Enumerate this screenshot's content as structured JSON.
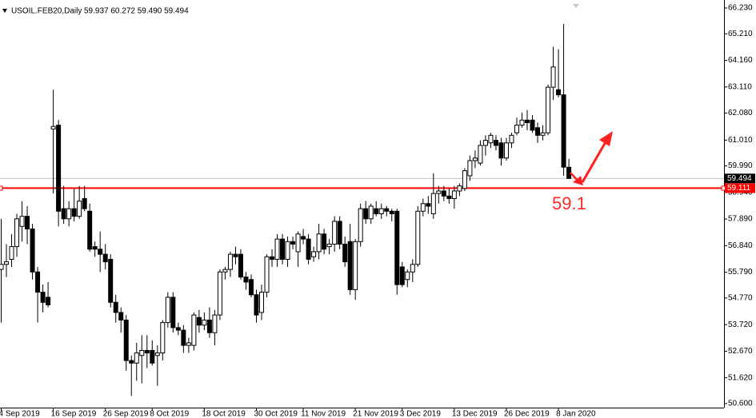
{
  "chart_data": {
    "type": "candlestick",
    "title": "USOIL.FEB20,Daily",
    "header_values": "59.937 60.272 59.490 59.494",
    "annotation": "59.1",
    "bull_color": "#ffffff",
    "bear_color": "#000000",
    "outline_color": "#000000",
    "ylim": [
      50.44,
      66.546
    ],
    "yticks": [
      {
        "value": 66.23,
        "label": "66.230"
      },
      {
        "value": 65.21,
        "label": "65.210"
      },
      {
        "value": 64.16,
        "label": "64.160"
      },
      {
        "value": 63.11,
        "label": "63.110"
      },
      {
        "value": 62.08,
        "label": "62.080"
      },
      {
        "value": 61.01,
        "label": "61.010"
      },
      {
        "value": 59.99,
        "label": "59.990"
      },
      {
        "value": 58.94,
        "label": "58.940"
      },
      {
        "value": 57.89,
        "label": "57.890"
      },
      {
        "value": 56.84,
        "label": "56.840"
      },
      {
        "value": 55.79,
        "label": "55.790"
      },
      {
        "value": 54.77,
        "label": "54.770"
      },
      {
        "value": 53.72,
        "label": "53.720"
      },
      {
        "value": 52.67,
        "label": "52.670"
      },
      {
        "value": 51.62,
        "label": "51.620"
      },
      {
        "value": 50.6,
        "label": "50.600"
      }
    ],
    "hlines": [
      {
        "value": 59.494,
        "label": "59.494",
        "color": "#c0c0c0",
        "box_color": "#000000"
      },
      {
        "value": 59.111,
        "label": "59.111",
        "color": "#ff0000",
        "box_color": "#ff0000"
      }
    ],
    "x": [
      "4 Sep 2019",
      null,
      null,
      null,
      null,
      null,
      null,
      null,
      null,
      null,
      "16 Sep 2019",
      null,
      null,
      null,
      null,
      null,
      null,
      null,
      null,
      null,
      "26 Sep 2019",
      null,
      null,
      null,
      null,
      null,
      null,
      null,
      null,
      "8 Oct 2019",
      null,
      null,
      null,
      null,
      null,
      null,
      null,
      null,
      null,
      "18 Oct 2019",
      null,
      null,
      null,
      null,
      null,
      null,
      null,
      null,
      null,
      "30 Oct 2019",
      null,
      null,
      null,
      null,
      null,
      null,
      null,
      null,
      "11 Nov 2019",
      null,
      null,
      null,
      null,
      null,
      null,
      null,
      null,
      null,
      "21 Nov 2019",
      null,
      null,
      null,
      null,
      null,
      null,
      null,
      null,
      "3 Dec 2019",
      null,
      null,
      null,
      null,
      null,
      null,
      null,
      null,
      null,
      "13 Dec 2019",
      null,
      null,
      null,
      null,
      null,
      null,
      null,
      null,
      null,
      "26 Dec 2019",
      null,
      null,
      null,
      null,
      null,
      null,
      null,
      null,
      null,
      "8 Jan 2020",
      null
    ],
    "candles": [
      {
        "o": 55.9,
        "h": 57.9,
        "l": 53.8,
        "c": 56.1
      },
      {
        "o": 56.1,
        "h": 56.9,
        "l": 55.6,
        "c": 56.2
      },
      {
        "o": 56.3,
        "h": 57.3,
        "l": 56.0,
        "c": 56.8
      },
      {
        "o": 56.8,
        "h": 58.1,
        "l": 56.4,
        "c": 57.9
      },
      {
        "o": 57.6,
        "h": 58.6,
        "l": 57.0,
        "c": 58.0
      },
      {
        "o": 58.0,
        "h": 58.4,
        "l": 56.9,
        "c": 57.5
      },
      {
        "o": 57.5,
        "h": 57.7,
        "l": 55.5,
        "c": 55.8
      },
      {
        "o": 55.8,
        "h": 56.0,
        "l": 53.8,
        "c": 55.0
      },
      {
        "o": 55.0,
        "h": 55.3,
        "l": 54.2,
        "c": 54.6
      },
      {
        "o": 54.8,
        "h": 55.4,
        "l": 54.4,
        "c": 54.5
      },
      {
        "o": 61.45,
        "h": 63.0,
        "l": 58.9,
        "c": 61.55
      },
      {
        "o": 61.6,
        "h": 61.8,
        "l": 57.6,
        "c": 58.2
      },
      {
        "o": 58.3,
        "h": 59.2,
        "l": 57.7,
        "c": 57.9
      },
      {
        "o": 57.9,
        "h": 58.6,
        "l": 57.6,
        "c": 58.3
      },
      {
        "o": 58.3,
        "h": 59.1,
        "l": 57.8,
        "c": 58.0
      },
      {
        "o": 58.0,
        "h": 59.2,
        "l": 57.9,
        "c": 58.6
      },
      {
        "o": 58.7,
        "h": 59.2,
        "l": 58.2,
        "c": 58.3
      },
      {
        "o": 58.2,
        "h": 58.5,
        "l": 56.6,
        "c": 56.7
      },
      {
        "o": 56.8,
        "h": 57.0,
        "l": 56.4,
        "c": 56.7
      },
      {
        "o": 56.7,
        "h": 57.4,
        "l": 55.8,
        "c": 56.5
      },
      {
        "o": 56.5,
        "h": 56.9,
        "l": 55.9,
        "c": 56.2
      },
      {
        "o": 56.3,
        "h": 56.5,
        "l": 54.4,
        "c": 54.6
      },
      {
        "o": 54.6,
        "h": 54.9,
        "l": 53.8,
        "c": 54.2
      },
      {
        "o": 54.2,
        "h": 54.4,
        "l": 53.4,
        "c": 53.9
      },
      {
        "o": 53.9,
        "h": 54.1,
        "l": 51.9,
        "c": 52.3
      },
      {
        "o": 52.3,
        "h": 52.5,
        "l": 50.9,
        "c": 52.2
      },
      {
        "o": 52.2,
        "h": 53.0,
        "l": 51.5,
        "c": 52.6
      },
      {
        "o": 52.5,
        "h": 53.3,
        "l": 51.4,
        "c": 52.7
      },
      {
        "o": 52.7,
        "h": 53.3,
        "l": 52.0,
        "c": 52.6
      },
      {
        "o": 52.7,
        "h": 53.1,
        "l": 52.1,
        "c": 52.2
      },
      {
        "o": 52.5,
        "h": 52.9,
        "l": 51.3,
        "c": 52.6
      },
      {
        "o": 52.6,
        "h": 53.9,
        "l": 52.3,
        "c": 53.8
      },
      {
        "o": 53.8,
        "h": 55.0,
        "l": 53.6,
        "c": 54.8
      },
      {
        "o": 54.8,
        "h": 55.0,
        "l": 53.4,
        "c": 53.6
      },
      {
        "o": 53.6,
        "h": 53.8,
        "l": 53.3,
        "c": 53.5
      },
      {
        "o": 53.5,
        "h": 53.7,
        "l": 52.6,
        "c": 52.9
      },
      {
        "o": 52.9,
        "h": 53.2,
        "l": 52.6,
        "c": 53.0
      },
      {
        "o": 52.9,
        "h": 54.2,
        "l": 52.7,
        "c": 54.1
      },
      {
        "o": 54.0,
        "h": 54.3,
        "l": 53.4,
        "c": 53.7
      },
      {
        "o": 53.7,
        "h": 54.2,
        "l": 53.5,
        "c": 53.9
      },
      {
        "o": 53.9,
        "h": 54.4,
        "l": 53.2,
        "c": 53.4
      },
      {
        "o": 53.4,
        "h": 54.3,
        "l": 52.9,
        "c": 54.1
      },
      {
        "o": 54.1,
        "h": 55.9,
        "l": 53.9,
        "c": 55.8
      },
      {
        "o": 55.8,
        "h": 56.0,
        "l": 55.5,
        "c": 55.9
      },
      {
        "o": 55.9,
        "h": 56.6,
        "l": 55.6,
        "c": 56.5
      },
      {
        "o": 56.5,
        "h": 56.8,
        "l": 56.1,
        "c": 56.4
      },
      {
        "o": 56.5,
        "h": 56.7,
        "l": 55.5,
        "c": 55.6
      },
      {
        "o": 55.6,
        "h": 55.8,
        "l": 55.1,
        "c": 55.4
      },
      {
        "o": 55.5,
        "h": 55.7,
        "l": 54.8,
        "c": 54.9
      },
      {
        "o": 54.9,
        "h": 55.1,
        "l": 53.8,
        "c": 54.1
      },
      {
        "o": 54.2,
        "h": 55.3,
        "l": 53.9,
        "c": 55.0
      },
      {
        "o": 55.0,
        "h": 56.5,
        "l": 54.8,
        "c": 56.4
      },
      {
        "o": 56.4,
        "h": 56.7,
        "l": 56.0,
        "c": 56.3
      },
      {
        "o": 56.3,
        "h": 57.3,
        "l": 56.0,
        "c": 57.1
      },
      {
        "o": 57.1,
        "h": 57.3,
        "l": 56.1,
        "c": 56.3
      },
      {
        "o": 56.3,
        "h": 57.2,
        "l": 56.0,
        "c": 57.0
      },
      {
        "o": 57.0,
        "h": 57.2,
        "l": 56.7,
        "c": 56.9
      },
      {
        "o": 56.6,
        "h": 57.4,
        "l": 56.0,
        "c": 57.3
      },
      {
        "o": 57.2,
        "h": 57.5,
        "l": 56.9,
        "c": 57.1
      },
      {
        "o": 57.1,
        "h": 57.3,
        "l": 56.1,
        "c": 56.3
      },
      {
        "o": 56.4,
        "h": 56.8,
        "l": 56.2,
        "c": 56.6
      },
      {
        "o": 56.6,
        "h": 57.7,
        "l": 56.3,
        "c": 57.3
      },
      {
        "o": 57.3,
        "h": 57.5,
        "l": 56.5,
        "c": 56.7
      },
      {
        "o": 56.8,
        "h": 57.1,
        "l": 56.5,
        "c": 56.9
      },
      {
        "o": 56.9,
        "h": 58.0,
        "l": 56.6,
        "c": 57.8
      },
      {
        "o": 57.8,
        "h": 58.0,
        "l": 56.7,
        "c": 56.9
      },
      {
        "o": 56.9,
        "h": 57.2,
        "l": 56.0,
        "c": 56.2
      },
      {
        "o": 57.0,
        "h": 57.7,
        "l": 54.9,
        "c": 55.1
      },
      {
        "o": 55.1,
        "h": 57.1,
        "l": 54.7,
        "c": 57.0
      },
      {
        "o": 57.0,
        "h": 58.5,
        "l": 56.8,
        "c": 58.3
      },
      {
        "o": 58.3,
        "h": 58.6,
        "l": 57.7,
        "c": 57.9
      },
      {
        "o": 57.9,
        "h": 58.5,
        "l": 57.7,
        "c": 58.4
      },
      {
        "o": 58.3,
        "h": 58.6,
        "l": 58.0,
        "c": 58.1
      },
      {
        "o": 58.1,
        "h": 58.5,
        "l": 57.9,
        "c": 58.3
      },
      {
        "o": 58.3,
        "h": 58.4,
        "l": 58.0,
        "c": 58.2
      },
      {
        "o": 58.2,
        "h": 58.3,
        "l": 57.8,
        "c": 58.1
      },
      {
        "o": 58.2,
        "h": 58.3,
        "l": 54.9,
        "c": 55.3
      },
      {
        "o": 56.0,
        "h": 56.2,
        "l": 55.2,
        "c": 55.3
      },
      {
        "o": 55.5,
        "h": 55.9,
        "l": 55.2,
        "c": 55.8
      },
      {
        "o": 55.8,
        "h": 56.3,
        "l": 55.4,
        "c": 56.1
      },
      {
        "o": 56.1,
        "h": 58.4,
        "l": 56.0,
        "c": 58.2
      },
      {
        "o": 58.2,
        "h": 58.7,
        "l": 58.0,
        "c": 58.5
      },
      {
        "o": 58.5,
        "h": 58.8,
        "l": 58.1,
        "c": 58.4
      },
      {
        "o": 58.1,
        "h": 59.7,
        "l": 57.9,
        "c": 58.9
      },
      {
        "o": 58.9,
        "h": 59.2,
        "l": 58.5,
        "c": 59.0
      },
      {
        "o": 59.0,
        "h": 59.2,
        "l": 58.6,
        "c": 58.8
      },
      {
        "o": 58.8,
        "h": 59.1,
        "l": 58.5,
        "c": 58.7
      },
      {
        "o": 58.7,
        "h": 59.2,
        "l": 58.3,
        "c": 59.0
      },
      {
        "o": 59.0,
        "h": 59.3,
        "l": 58.8,
        "c": 59.2
      },
      {
        "o": 59.1,
        "h": 59.9,
        "l": 59.0,
        "c": 59.8
      },
      {
        "o": 59.6,
        "h": 60.4,
        "l": 59.4,
        "c": 60.2
      },
      {
        "o": 60.2,
        "h": 60.6,
        "l": 59.9,
        "c": 60.3
      },
      {
        "o": 60.1,
        "h": 61.0,
        "l": 60.0,
        "c": 60.8
      },
      {
        "o": 60.8,
        "h": 61.2,
        "l": 60.4,
        "c": 61.0
      },
      {
        "o": 60.9,
        "h": 61.3,
        "l": 60.7,
        "c": 61.2
      },
      {
        "o": 61.0,
        "h": 61.2,
        "l": 60.6,
        "c": 60.8
      },
      {
        "o": 60.9,
        "h": 61.1,
        "l": 60.0,
        "c": 60.3
      },
      {
        "o": 60.3,
        "h": 61.1,
        "l": 60.2,
        "c": 60.9
      },
      {
        "o": 60.9,
        "h": 61.3,
        "l": 60.7,
        "c": 61.2
      },
      {
        "o": 61.3,
        "h": 61.9,
        "l": 61.2,
        "c": 61.6
      },
      {
        "o": 61.6,
        "h": 62.1,
        "l": 61.5,
        "c": 61.8
      },
      {
        "o": 61.8,
        "h": 62.2,
        "l": 61.4,
        "c": 61.7
      },
      {
        "o": 61.8,
        "h": 62.0,
        "l": 61.3,
        "c": 61.4
      },
      {
        "o": 61.5,
        "h": 61.7,
        "l": 60.9,
        "c": 61.2
      },
      {
        "o": 61.2,
        "h": 61.6,
        "l": 61.0,
        "c": 61.3
      },
      {
        "o": 61.3,
        "h": 63.2,
        "l": 61.2,
        "c": 63.1
      },
      {
        "o": 63.1,
        "h": 64.7,
        "l": 62.6,
        "c": 63.9
      },
      {
        "o": 63.0,
        "h": 64.6,
        "l": 62.7,
        "c": 62.8
      },
      {
        "o": 62.8,
        "h": 65.6,
        "l": 59.6,
        "c": 59.94
      },
      {
        "o": 59.937,
        "h": 60.272,
        "l": 59.49,
        "c": 59.494
      }
    ]
  }
}
